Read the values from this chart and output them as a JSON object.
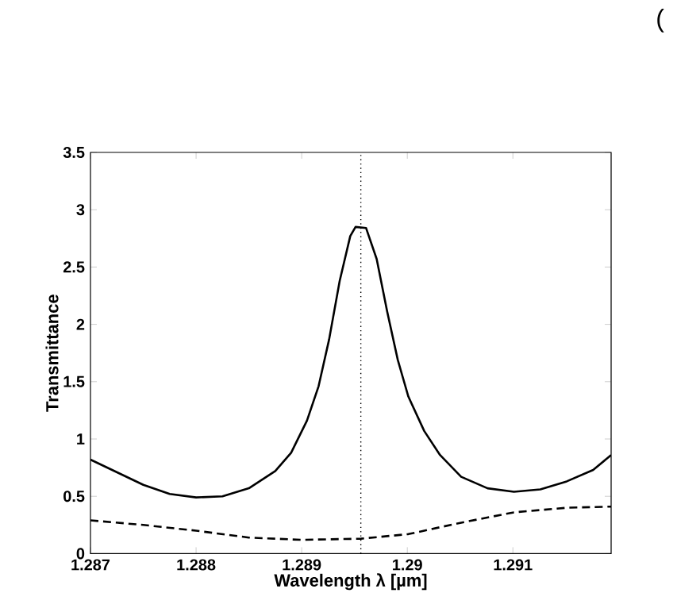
{
  "chart_data": {
    "type": "line",
    "xlabel": "Wavelength λ [µm]",
    "ylabel": "Transmittance",
    "annotations": [
      "("
    ],
    "xlim": [
      1.287,
      1.29193
    ],
    "ylim": [
      0,
      3.5
    ],
    "xticks": [
      1.287,
      1.288,
      1.289,
      1.29,
      1.291
    ],
    "yticks": [
      0,
      0.5,
      1,
      1.5,
      2,
      2.5,
      3,
      3.5
    ],
    "grid": false,
    "marker": "none",
    "ref_lines": [
      {
        "axis": "x",
        "value": 1.28956,
        "color": "#000000",
        "line_style": "dotted"
      }
    ],
    "series": [
      {
        "color": "#000000",
        "line_style": "solid",
        "x": [
          1.287,
          1.28725,
          1.2875,
          1.28775,
          1.288,
          1.28825,
          1.2885,
          1.28875,
          1.2889,
          1.28905,
          1.28916,
          1.28926,
          1.28936,
          1.28946,
          1.28951,
          1.28961,
          1.28971,
          1.28981,
          1.28991,
          1.29001,
          1.29016,
          1.29031,
          1.29051,
          1.29076,
          1.29101,
          1.29126,
          1.29151,
          1.29176,
          1.29193
        ],
        "values": [
          0.82,
          0.71,
          0.6,
          0.52,
          0.49,
          0.5,
          0.57,
          0.72,
          0.88,
          1.16,
          1.46,
          1.87,
          2.38,
          2.77,
          2.85,
          2.84,
          2.57,
          2.11,
          1.69,
          1.37,
          1.07,
          0.86,
          0.67,
          0.57,
          0.54,
          0.56,
          0.63,
          0.73,
          0.86
        ]
      },
      {
        "color": "#000000",
        "line_style": "dashed",
        "x": [
          1.287,
          1.2875,
          1.288,
          1.2885,
          1.289,
          1.28956,
          1.29001,
          1.29051,
          1.29101,
          1.29151,
          1.29193
        ],
        "values": [
          0.29,
          0.25,
          0.2,
          0.14,
          0.12,
          0.13,
          0.17,
          0.27,
          0.36,
          0.4,
          0.41
        ]
      }
    ]
  }
}
